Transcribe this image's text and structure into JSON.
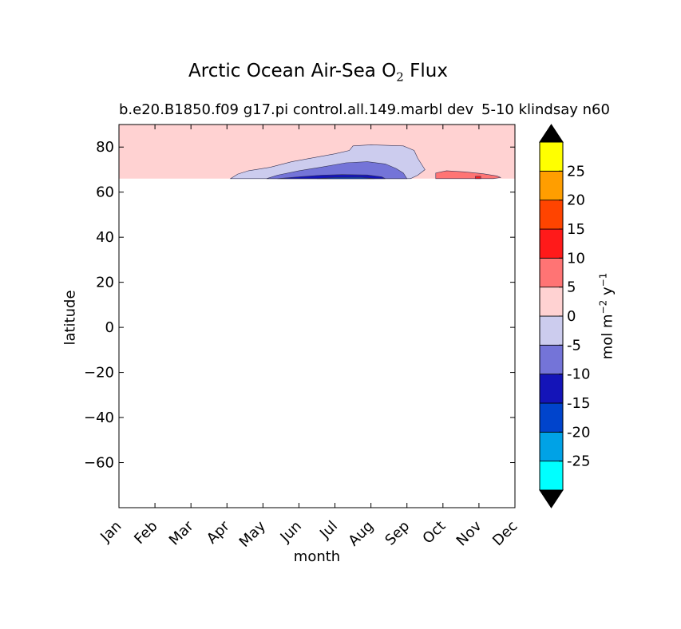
{
  "title": {
    "main": "Arctic Ocean Air-Sea O",
    "sub": "2",
    "tail": " Flux"
  },
  "subtitle_left": "b.e20.B1850.f09 g17.pi control.all.149.marbl dev",
  "subtitle_right": "5-10 klindsay n60",
  "chart_data": {
    "type": "heatmap",
    "xlabel": "month",
    "ylabel": "latitude",
    "x_ticks": [
      "Jan",
      "Feb",
      "Mar",
      "Apr",
      "May",
      "Jun",
      "Jul",
      "Aug",
      "Sep",
      "Oct",
      "Nov",
      "Dec"
    ],
    "y_ticks": [
      80,
      60,
      40,
      20,
      0,
      -20,
      -40,
      -60
    ],
    "xlim": [
      0,
      11
    ],
    "ylim": [
      -80,
      90
    ],
    "data_lat_min": 66,
    "colorbar": {
      "label": "mol m",
      "label_exp1": "−2",
      "label_mid": "  y",
      "label_exp2": "−1",
      "levels": [
        -30,
        -25,
        -20,
        -15,
        -10,
        -5,
        0,
        5,
        10,
        15,
        20,
        25,
        30
      ],
      "tick_labels": [
        "-25",
        "-20",
        "-15",
        "-10",
        "-5",
        "0",
        "5",
        "10",
        "15",
        "20",
        "25"
      ],
      "colors": [
        "#00ffff",
        "#00a2e6",
        "#0044cc",
        "#1414b8",
        "#7474d8",
        "#ccccee",
        "#ffd2d2",
        "#ff7474",
        "#ff1a1a",
        "#ff4400",
        "#ff9e00",
        "#ffff00"
      ],
      "extend": "both",
      "under_color": "#000000",
      "over_color": "#000000"
    },
    "regions": [
      {
        "value_range": [
          0,
          5
        ],
        "color": "#ffd2d2",
        "polygon": [
          [
            0,
            66
          ],
          [
            11,
            66
          ],
          [
            11,
            90
          ],
          [
            0,
            90
          ]
        ]
      },
      {
        "value_range": [
          -5,
          0
        ],
        "color": "#ccccee",
        "polygon": [
          [
            3.1,
            66
          ],
          [
            3.3,
            68
          ],
          [
            3.6,
            69.5
          ],
          [
            4.2,
            71
          ],
          [
            4.8,
            73.5
          ],
          [
            5.3,
            75
          ],
          [
            6.0,
            77
          ],
          [
            6.4,
            78.5
          ],
          [
            6.5,
            80.5
          ],
          [
            7.0,
            81
          ],
          [
            7.9,
            80.5
          ],
          [
            8.2,
            78.5
          ],
          [
            8.3,
            75
          ],
          [
            8.5,
            70
          ],
          [
            8.3,
            67.5
          ],
          [
            8.1,
            66
          ]
        ]
      },
      {
        "value_range": [
          -10,
          -5
        ],
        "color": "#7474d8",
        "polygon": [
          [
            4.1,
            66
          ],
          [
            4.4,
            67.5
          ],
          [
            5.0,
            69.5
          ],
          [
            5.6,
            71
          ],
          [
            6.3,
            73
          ],
          [
            6.9,
            73.5
          ],
          [
            7.4,
            72.5
          ],
          [
            7.7,
            70.5
          ],
          [
            7.9,
            68.5
          ],
          [
            8.0,
            66
          ]
        ]
      },
      {
        "value_range": [
          -15,
          -10
        ],
        "color": "#1414b8",
        "polygon": [
          [
            4.4,
            66
          ],
          [
            5.0,
            66.8
          ],
          [
            5.6,
            67.5
          ],
          [
            6.2,
            67.8
          ],
          [
            6.9,
            67.6
          ],
          [
            7.3,
            66.8
          ],
          [
            7.4,
            66
          ]
        ]
      },
      {
        "value_range": [
          -20,
          -15
        ],
        "color": "#0044cc",
        "polygon": [
          [
            5.5,
            66
          ],
          [
            6.0,
            66.5
          ],
          [
            6.7,
            66.6
          ],
          [
            7.1,
            66
          ]
        ]
      },
      {
        "value_range": [
          5,
          10
        ],
        "color": "#ff7474",
        "polygon": [
          [
            8.8,
            66
          ],
          [
            8.8,
            68.5
          ],
          [
            9.1,
            69.5
          ],
          [
            9.6,
            69
          ],
          [
            10.1,
            68.2
          ],
          [
            10.5,
            67.2
          ],
          [
            10.6,
            66.5
          ],
          [
            10.4,
            66
          ]
        ]
      },
      {
        "value_range": [
          10,
          15
        ],
        "color": "#ff1a1a",
        "polygon": [
          [
            9.9,
            66
          ],
          [
            9.9,
            67
          ],
          [
            10.05,
            67
          ],
          [
            10.05,
            66
          ]
        ]
      }
    ]
  }
}
